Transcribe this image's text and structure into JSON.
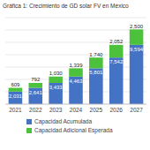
{
  "chart_data": {
    "type": "bar",
    "title": "Gráfica 1: Crecimiento de GD solar FV en México",
    "categories": [
      "2021",
      "2022",
      "2023",
      "2024",
      "2025",
      "2026",
      "2027"
    ],
    "series": [
      {
        "name": "Capacidad Acumulada",
        "color": "#4472c4",
        "values": [
          2031,
          2641,
          3433,
          4463,
          5801,
          7542,
          9594
        ],
        "value_labels": [
          "2,031",
          "2,641",
          "3,433",
          "4,463",
          "5,801",
          "7,542",
          "9,594"
        ]
      },
      {
        "name": "Capacidad Adicional Esperada",
        "color": "#4cc13b",
        "values": [
          609,
          792,
          1030,
          1339,
          1740,
          2052,
          2500
        ],
        "value_labels": [
          "609",
          "792",
          "1,030",
          "1,339",
          "1,740",
          "2,052",
          "2,500"
        ]
      }
    ],
    "stacked": true,
    "data_labels": true,
    "grid": true,
    "legend": "bottom",
    "tick_labels": "x",
    "ylim": [
      0,
      14000
    ],
    "yticks": [
      0,
      2000,
      4000,
      6000,
      8000,
      10000,
      12000,
      14000
    ]
  }
}
